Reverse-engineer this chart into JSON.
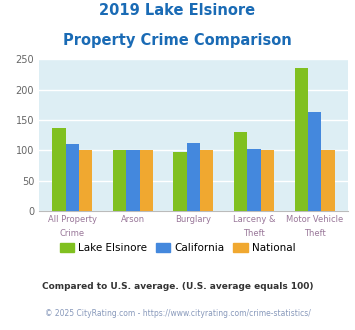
{
  "title_line1": "2019 Lake Elsinore",
  "title_line2": "Property Crime Comparison",
  "title_color": "#1a6bb5",
  "categories": [
    "All Property Crime",
    "Arson",
    "Burglary",
    "Larceny & Theft",
    "Motor Vehicle Theft"
  ],
  "lake_elsinore": [
    137,
    100,
    98,
    130,
    236
  ],
  "california": [
    111,
    101,
    113,
    102,
    164
  ],
  "national": [
    100,
    100,
    100,
    100,
    100
  ],
  "color_le": "#80c020",
  "color_ca": "#4488dd",
  "color_nat": "#f0a830",
  "ylim": [
    0,
    250
  ],
  "yticks": [
    0,
    50,
    100,
    150,
    200,
    250
  ],
  "plot_bg": "#ddeef4",
  "grid_color": "#ffffff",
  "legend_labels": [
    "Lake Elsinore",
    "California",
    "National"
  ],
  "footnote1": "Compared to U.S. average. (U.S. average equals 100)",
  "footnote2": "© 2025 CityRating.com - https://www.cityrating.com/crime-statistics/",
  "footnote1_color": "#333333",
  "footnote2_color": "#8899bb",
  "bar_width": 0.22,
  "xtick_color": "#997799"
}
